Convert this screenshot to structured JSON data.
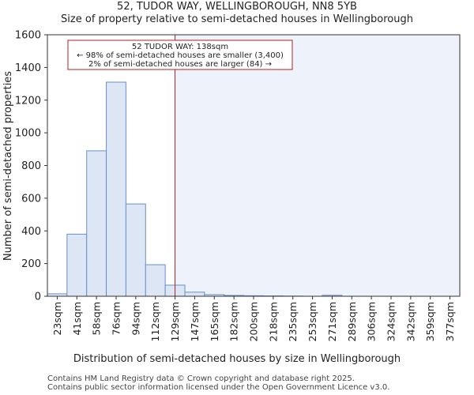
{
  "chart_data": {
    "type": "bar",
    "title": "52, TUDOR WAY, WELLINGBOROUGH, NN8 5YB",
    "subtitle": "Size of property relative to semi-detached houses in Wellingborough",
    "xlabel": "Distribution of semi-detached houses by size in Wellingborough",
    "ylabel": "Number of semi-detached properties",
    "ylim": [
      0,
      1600
    ],
    "yticks": [
      0,
      200,
      400,
      600,
      800,
      1000,
      1200,
      1400,
      1600
    ],
    "categories": [
      "23sqm",
      "41sqm",
      "58sqm",
      "76sqm",
      "94sqm",
      "112sqm",
      "129sqm",
      "147sqm",
      "165sqm",
      "182sqm",
      "200sqm",
      "218sqm",
      "235sqm",
      "253sqm",
      "271sqm",
      "289sqm",
      "306sqm",
      "324sqm",
      "342sqm",
      "359sqm",
      "377sqm"
    ],
    "values": [
      15,
      380,
      890,
      1310,
      565,
      193,
      68,
      25,
      10,
      5,
      3,
      2,
      1,
      0,
      6,
      0,
      0,
      0,
      0,
      0,
      0
    ],
    "marker": {
      "value": 138,
      "label": "52 TUDOR WAY: 138sqm"
    },
    "annotation": [
      "52 TUDOR WAY: 138sqm",
      "← 98% of semi-detached houses are smaller (3,400)",
      "2% of semi-detached houses are larger (84) →"
    ],
    "colors": {
      "bar_fill": "#dce6f4",
      "bar_stroke": "#6a8fc8",
      "highlight_bg": "#eef2fa",
      "marker_line": "#b22222",
      "annotation_border": "#b22222"
    }
  },
  "footer": {
    "line1": "Contains HM Land Registry data © Crown copyright and database right 2025.",
    "line2": "Contains public sector information licensed under the Open Government Licence v3.0."
  }
}
